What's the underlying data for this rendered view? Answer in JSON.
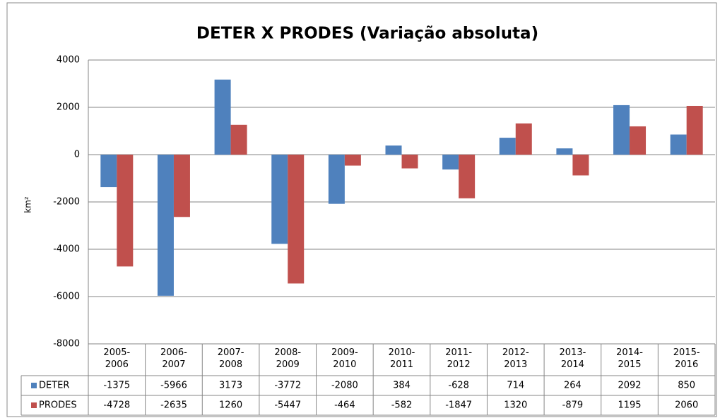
{
  "chart_data": {
    "type": "bar",
    "title": "DETER X PRODES (Variação absoluta)",
    "y_label": "km²",
    "categories": [
      "2005-2006",
      "2006-2007",
      "2007-2008",
      "2008-2009",
      "2009-2010",
      "2010-2011",
      "2011-2012",
      "2012-2013",
      "2013-2014",
      "2014-2015",
      "2015-2016"
    ],
    "series": [
      {
        "name": "DETER",
        "color": "#4f81bd",
        "values": [
          -1375,
          -5966,
          3173,
          -3772,
          -2080,
          384,
          -628,
          714,
          264,
          2092,
          850
        ]
      },
      {
        "name": "PRODES",
        "color": "#c0504d",
        "values": [
          -4728,
          -2635,
          1260,
          -5447,
          -464,
          -582,
          -1847,
          1320,
          -879,
          1195,
          2060
        ]
      }
    ],
    "ylim": [
      -8000,
      4000
    ],
    "yticks": [
      -8000,
      -6000,
      -4000,
      -2000,
      0,
      2000,
      4000
    ],
    "grid": true,
    "data_table": true
  }
}
